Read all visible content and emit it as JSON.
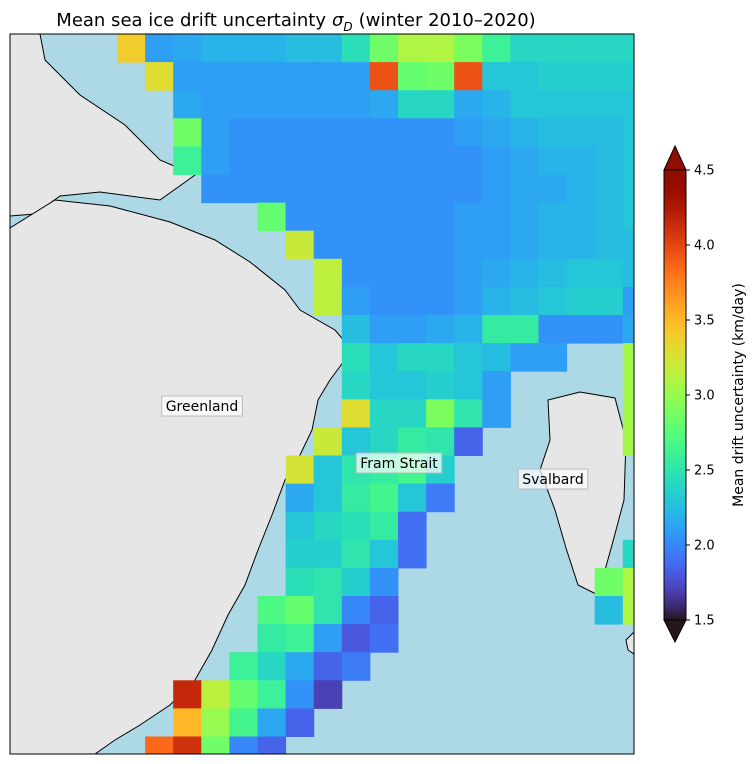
{
  "chart_data": {
    "type": "heatmap",
    "title": {
      "main": "Mean sea ice drift uncertainty",
      "symbol": "σ",
      "subscript": "D",
      "period": "(winter 2010–2020)"
    },
    "colorbar_label": "Mean drift uncertainty (km/day)",
    "colormap": "turbo",
    "clim": [
      1.5,
      4.5
    ],
    "cticks": [
      1.5,
      {
        "value": 2,
        "label": "2.0"
      },
      2.5,
      {
        "value": 3,
        "label": "3.0"
      },
      3.5,
      {
        "value": 4,
        "label": "4.0"
      },
      4.5
    ],
    "annotations": [
      "Greenland",
      "Fram Strait",
      "Svalbard"
    ],
    "grid": [
      [
        3.4,
        2.1,
        2.15,
        2.2,
        2.2,
        2.2,
        2.25,
        2.25,
        2.45,
        2.85,
        3.1,
        3.1,
        2.9,
        2.6,
        2.4,
        2.4,
        2.4,
        2.4,
        2.4
      ],
      [
        null,
        3.3,
        2.1,
        2.1,
        2.1,
        2.1,
        2.1,
        2.1,
        2.1,
        3.95,
        2.8,
        2.85,
        3.95,
        2.3,
        2.3,
        2.35,
        2.35,
        2.35,
        2.35
      ],
      [
        null,
        null,
        2.15,
        2.1,
        2.1,
        2.1,
        2.1,
        2.1,
        2.1,
        2.15,
        2.4,
        2.4,
        2.15,
        2.2,
        2.3,
        2.3,
        2.3,
        2.3,
        2.3
      ],
      [
        null,
        null,
        2.85,
        2.1,
        2.05,
        2.05,
        2.05,
        2.05,
        2.05,
        2.05,
        2.05,
        2.05,
        2.1,
        2.15,
        2.2,
        2.25,
        2.25,
        2.25,
        2.3
      ],
      [
        null,
        null,
        2.6,
        2.1,
        2.05,
        2.05,
        2.05,
        2.05,
        2.05,
        2.05,
        2.05,
        2.05,
        2.05,
        2.1,
        2.15,
        2.2,
        2.2,
        2.25,
        2.3
      ],
      [
        null,
        null,
        null,
        2.05,
        2.05,
        2.05,
        2.05,
        2.05,
        2.05,
        2.05,
        2.05,
        2.05,
        2.05,
        2.1,
        2.15,
        2.15,
        2.2,
        2.25,
        2.3
      ],
      [
        null,
        null,
        null,
        null,
        null,
        2.8,
        2.05,
        2.05,
        2.05,
        2.05,
        2.05,
        2.05,
        2.1,
        2.1,
        2.15,
        2.2,
        2.2,
        2.25,
        2.3
      ],
      [
        null,
        null,
        null,
        null,
        null,
        null,
        3.2,
        2.05,
        2.05,
        2.05,
        2.05,
        2.05,
        2.1,
        2.1,
        2.15,
        2.2,
        2.2,
        2.25,
        2.25
      ],
      [
        null,
        null,
        null,
        null,
        null,
        null,
        null,
        3.15,
        2.05,
        2.05,
        2.05,
        2.05,
        2.1,
        2.15,
        2.2,
        2.25,
        2.3,
        2.3,
        2.25
      ],
      [
        null,
        null,
        null,
        null,
        null,
        null,
        null,
        3.15,
        2.1,
        2.05,
        2.05,
        2.05,
        2.1,
        2.2,
        2.25,
        2.3,
        2.35,
        2.35,
        2.1
      ],
      [
        null,
        null,
        null,
        null,
        null,
        null,
        null,
        null,
        2.25,
        2.1,
        2.1,
        2.15,
        2.2,
        2.55,
        2.55,
        2.05,
        2.05,
        2.05,
        2.15
      ],
      [
        null,
        null,
        null,
        null,
        null,
        null,
        null,
        null,
        2.45,
        2.3,
        2.4,
        2.4,
        2.3,
        2.25,
        2.1,
        2.1,
        null,
        null,
        3.05
      ],
      [
        null,
        null,
        null,
        null,
        null,
        null,
        null,
        null,
        2.4,
        2.3,
        2.3,
        2.35,
        2.3,
        2.1,
        null,
        null,
        null,
        null,
        3.05
      ],
      [
        null,
        null,
        null,
        null,
        null,
        null,
        null,
        null,
        3.3,
        2.4,
        2.4,
        2.9,
        2.5,
        2.1,
        null,
        null,
        null,
        null,
        3.05
      ],
      [
        null,
        null,
        null,
        null,
        null,
        null,
        null,
        3.2,
        2.3,
        2.4,
        2.55,
        2.5,
        1.85,
        null,
        null,
        null,
        null,
        null,
        3.05
      ],
      [
        null,
        null,
        null,
        null,
        null,
        null,
        3.25,
        2.3,
        2.5,
        2.55,
        2.65,
        2.35,
        null,
        null,
        null,
        null,
        null,
        null,
        null
      ],
      [
        null,
        null,
        null,
        null,
        null,
        null,
        2.15,
        2.3,
        2.55,
        2.65,
        2.3,
        1.95,
        null,
        null,
        null,
        null,
        null,
        null,
        null
      ],
      [
        null,
        null,
        null,
        null,
        null,
        null,
        2.3,
        2.4,
        2.45,
        2.55,
        1.9,
        null,
        null,
        null,
        null,
        null,
        null,
        null,
        null
      ],
      [
        null,
        null,
        null,
        null,
        null,
        null,
        2.35,
        2.35,
        2.5,
        2.3,
        1.9,
        null,
        null,
        null,
        null,
        null,
        null,
        null,
        2.4
      ],
      [
        null,
        null,
        null,
        null,
        null,
        null,
        2.45,
        2.5,
        2.35,
        2.05,
        null,
        null,
        null,
        null,
        null,
        null,
        null,
        2.85,
        3.1
      ],
      [
        null,
        null,
        null,
        null,
        null,
        2.7,
        2.8,
        2.5,
        2.0,
        1.85,
        null,
        null,
        null,
        null,
        null,
        null,
        null,
        2.25,
        3.1
      ],
      [
        null,
        null,
        null,
        null,
        null,
        2.55,
        2.6,
        2.1,
        1.8,
        1.9,
        null,
        null,
        null,
        null,
        null,
        null,
        null,
        null,
        null
      ],
      [
        null,
        null,
        null,
        null,
        2.6,
        2.4,
        2.15,
        1.85,
        1.95,
        null,
        null,
        null,
        null,
        null,
        null,
        null,
        null,
        null,
        null
      ],
      [
        null,
        null,
        4.15,
        3.15,
        2.8,
        2.6,
        2.05,
        1.7,
        null,
        null,
        null,
        null,
        null,
        null,
        null,
        null,
        null,
        null,
        null
      ],
      [
        null,
        null,
        3.5,
        3.0,
        2.65,
        2.15,
        1.85,
        null,
        null,
        null,
        null,
        null,
        null,
        null,
        null,
        null,
        null,
        null,
        null
      ],
      [
        null,
        3.85,
        4.1,
        2.85,
        2.0,
        1.85,
        null,
        null,
        null,
        null,
        null,
        null,
        null,
        null,
        null,
        null,
        null,
        null,
        null
      ]
    ]
  }
}
